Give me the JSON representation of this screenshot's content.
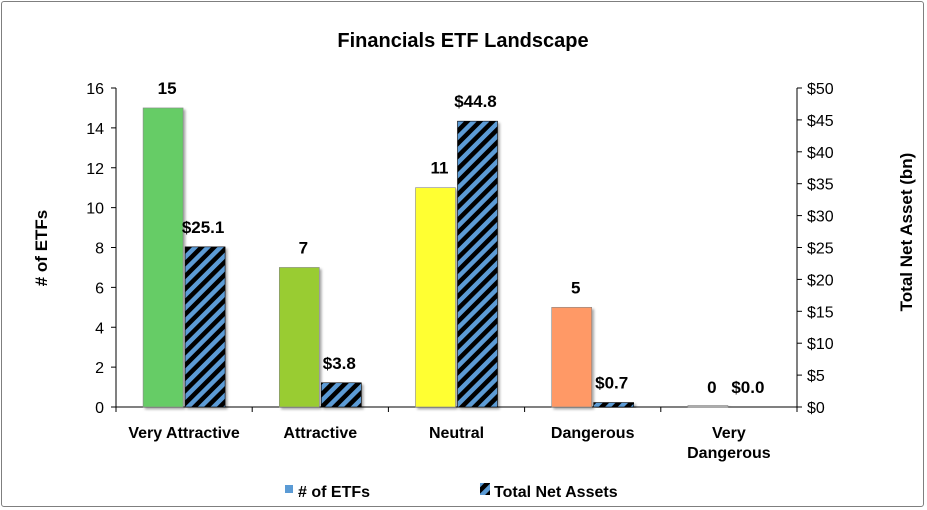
{
  "chart_data": {
    "type": "bar",
    "title": "Financials ETF Landscape",
    "categories": [
      "Very Attractive",
      "Attractive",
      "Neutral",
      "Dangerous",
      "Very Dangerous"
    ],
    "category_lines": [
      [
        "Very Attractive"
      ],
      [
        "Attractive"
      ],
      [
        "Neutral"
      ],
      [
        "Dangerous"
      ],
      [
        "Very",
        "Dangerous"
      ]
    ],
    "ylabel": "# of ETFs",
    "y2label": "Total Net Asset (bn)",
    "ylim": [
      0,
      16
    ],
    "y2lim": [
      0,
      50
    ],
    "yticks": [
      "0",
      "2",
      "4",
      "6",
      "8",
      "10",
      "12",
      "14",
      "16"
    ],
    "y2ticks": [
      "$0",
      "$5",
      "$10",
      "$15",
      "$20",
      "$25",
      "$30",
      "$35",
      "$40",
      "$45",
      "$50"
    ],
    "series": [
      {
        "name": "# of ETFs",
        "axis": "left",
        "values": [
          15,
          7,
          11,
          5,
          0
        ],
        "labels": [
          "15",
          "7",
          "11",
          "5",
          "0"
        ],
        "colors": [
          "#66cc66",
          "#99cc33",
          "#ffff33",
          "#ff9966",
          "#cccccc"
        ]
      },
      {
        "name": "Total Net Assets",
        "axis": "right",
        "values": [
          25.1,
          3.8,
          44.8,
          0.7,
          0.0
        ],
        "labels": [
          "$25.1",
          "$3.8",
          "$44.8",
          "$0.7",
          "$0.0"
        ],
        "pattern": "blue-black-diagonal-stripes"
      }
    ],
    "legend_placement": "bottom",
    "grid": false
  },
  "colors": {
    "legend_etf_swatch": "#5b9bd5",
    "stripe_blue": "#5b9bd5",
    "stripe_black": "#000000"
  }
}
